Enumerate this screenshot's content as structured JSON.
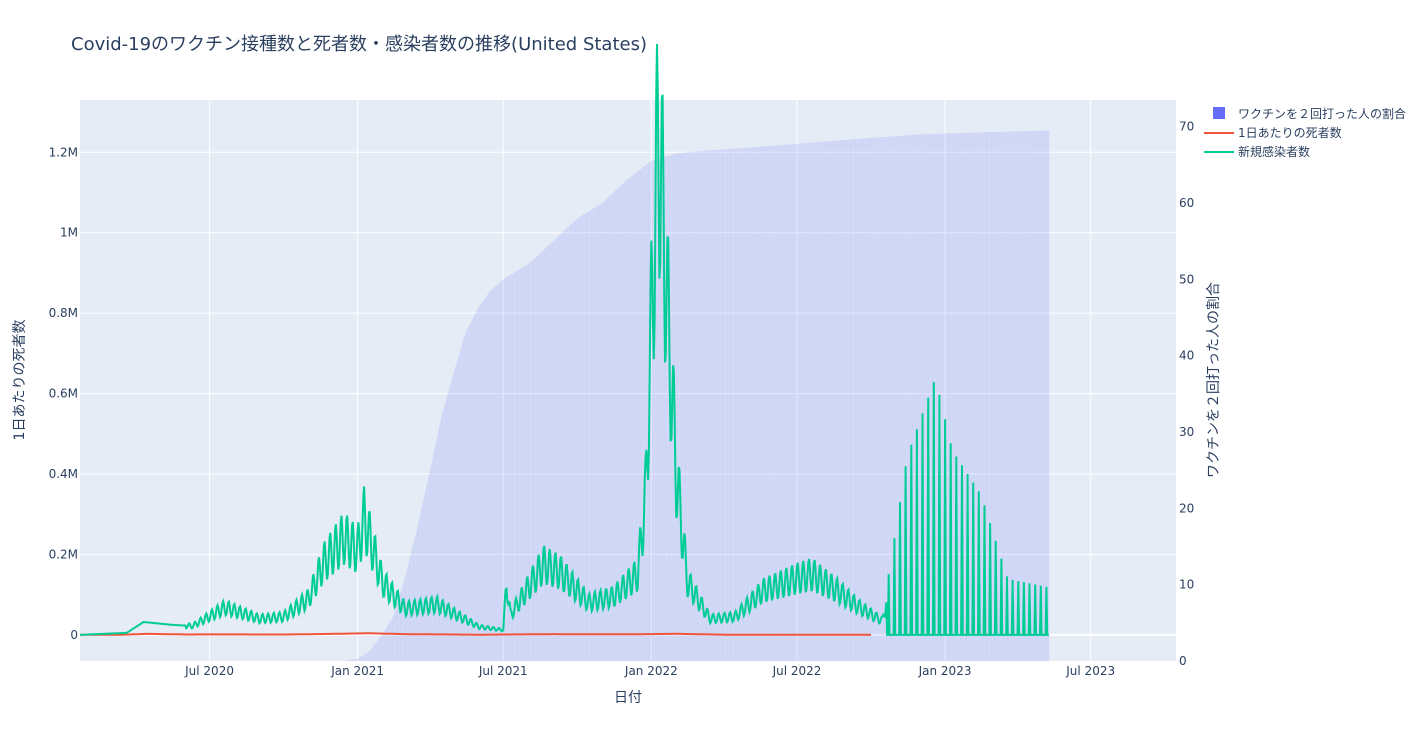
{
  "chart_data": {
    "type": "line",
    "title": "Covid-19のワクチン接種数と死者数・感染者数の推移(United States)",
    "xlabel": "日付",
    "ylabel": "1日あたりの死者数",
    "y2label": "ワクチンを２回打った人の割合",
    "x_range": [
      "2020-01-22",
      "2023-10-15"
    ],
    "x_ticks": [
      {
        "date": "2020-07-01",
        "label": "Jul 2020"
      },
      {
        "date": "2021-01-01",
        "label": "Jan 2021"
      },
      {
        "date": "2021-07-01",
        "label": "Jul 2021"
      },
      {
        "date": "2022-01-01",
        "label": "Jan 2022"
      },
      {
        "date": "2022-07-01",
        "label": "Jul 2022"
      },
      {
        "date": "2023-01-01",
        "label": "Jan 2023"
      },
      {
        "date": "2023-07-01",
        "label": "Jul 2023"
      }
    ],
    "ylim": [
      -65000,
      1330000
    ],
    "y_ticks": [
      {
        "value": 0,
        "label": "0"
      },
      {
        "value": 200000,
        "label": "0.2M"
      },
      {
        "value": 400000,
        "label": "0.4M"
      },
      {
        "value": 600000,
        "label": "0.6M"
      },
      {
        "value": 800000,
        "label": "0.8M"
      },
      {
        "value": 1000000,
        "label": "1M"
      },
      {
        "value": 1200000,
        "label": "1.2M"
      }
    ],
    "y2lim": [
      0,
      73.5
    ],
    "y2_ticks": [
      {
        "value": 0,
        "label": "0"
      },
      {
        "value": 10,
        "label": "10"
      },
      {
        "value": 20,
        "label": "20"
      },
      {
        "value": 30,
        "label": "30"
      },
      {
        "value": 40,
        "label": "40"
      },
      {
        "value": 50,
        "label": "50"
      },
      {
        "value": 60,
        "label": "60"
      },
      {
        "value": 70,
        "label": "70"
      }
    ],
    "legend_position": "top-right",
    "series": [
      {
        "name": "ワクチンを２回打った人の割合",
        "kind": "bar",
        "axis": "y2",
        "color": "#636efa",
        "points": [
          [
            "2020-12-14",
            0.0
          ],
          [
            "2021-01-01",
            0.3
          ],
          [
            "2021-01-15",
            1.2
          ],
          [
            "2021-02-01",
            3.5
          ],
          [
            "2021-02-15",
            6.0
          ],
          [
            "2021-03-01",
            11.0
          ],
          [
            "2021-03-15",
            17.0
          ],
          [
            "2021-04-01",
            25.0
          ],
          [
            "2021-04-15",
            32.0
          ],
          [
            "2021-05-01",
            38.0
          ],
          [
            "2021-05-15",
            43.0
          ],
          [
            "2021-06-01",
            46.5
          ],
          [
            "2021-06-15",
            48.5
          ],
          [
            "2021-07-01",
            50.0
          ],
          [
            "2021-08-01",
            52.0
          ],
          [
            "2021-09-01",
            55.0
          ],
          [
            "2021-10-01",
            58.0
          ],
          [
            "2021-11-01",
            60.0
          ],
          [
            "2021-12-01",
            63.0
          ],
          [
            "2022-01-01",
            65.5
          ],
          [
            "2022-02-01",
            66.5
          ],
          [
            "2022-03-01",
            66.8
          ],
          [
            "2022-06-01",
            67.5
          ],
          [
            "2022-09-01",
            68.3
          ],
          [
            "2022-12-01",
            69.0
          ],
          [
            "2023-03-01",
            69.3
          ],
          [
            "2023-05-10",
            69.5
          ]
        ]
      },
      {
        "name": "1日あたりの死者数",
        "kind": "line",
        "axis": "y",
        "color": "#ef553b",
        "points": [
          [
            "2020-01-22",
            0
          ],
          [
            "2020-03-15",
            500
          ],
          [
            "2020-04-15",
            2500
          ],
          [
            "2020-06-01",
            1000
          ],
          [
            "2020-08-01",
            1100
          ],
          [
            "2020-10-01",
            800
          ],
          [
            "2020-12-01",
            2500
          ],
          [
            "2021-01-15",
            4000
          ],
          [
            "2021-03-01",
            1800
          ],
          [
            "2021-06-01",
            400
          ],
          [
            "2021-09-01",
            1800
          ],
          [
            "2021-12-01",
            1300
          ],
          [
            "2022-02-01",
            2600
          ],
          [
            "2022-04-01",
            500
          ],
          [
            "2022-07-01",
            400
          ],
          [
            "2022-10-01",
            350
          ]
        ]
      },
      {
        "name": "新規感染者数",
        "kind": "line",
        "axis": "y",
        "color": "#00cc96",
        "points": [
          [
            "2020-01-22",
            0
          ],
          [
            "2020-03-20",
            5000
          ],
          [
            "2020-04-10",
            32000
          ],
          [
            "2020-05-15",
            25000
          ],
          [
            "2020-06-10",
            22000
          ],
          [
            "2020-07-20",
            68000
          ],
          [
            "2020-09-01",
            40000
          ],
          [
            "2020-10-01",
            45000
          ],
          [
            "2020-11-01",
            90000
          ],
          [
            "2020-11-20",
            180000
          ],
          [
            "2020-12-15",
            240000
          ],
          [
            "2021-01-01",
            210000
          ],
          [
            "2021-01-09",
            290000
          ],
          [
            "2021-02-01",
            130000
          ],
          [
            "2021-03-01",
            65000
          ],
          [
            "2021-04-10",
            75000
          ],
          [
            "2021-06-01",
            20000
          ],
          [
            "2021-07-01",
            12000
          ],
          [
            "2021-07-05",
            130000
          ],
          [
            "2021-07-10",
            50000
          ],
          [
            "2021-08-20",
            175000
          ],
          [
            "2021-09-10",
            155000
          ],
          [
            "2021-10-15",
            80000
          ],
          [
            "2021-11-15",
            95000
          ],
          [
            "2021-12-15",
            150000
          ],
          [
            "2021-12-25",
            350000
          ],
          [
            "2022-01-03",
            890000
          ],
          [
            "2022-01-10",
            1260000
          ],
          [
            "2022-01-20",
            850000
          ],
          [
            "2022-02-01",
            400000
          ],
          [
            "2022-02-15",
            130000
          ],
          [
            "2022-03-15",
            40000
          ],
          [
            "2022-04-15",
            45000
          ],
          [
            "2022-05-20",
            110000
          ],
          [
            "2022-07-01",
            140000
          ],
          [
            "2022-07-20",
            150000
          ],
          [
            "2022-08-20",
            110000
          ],
          [
            "2022-09-15",
            70000
          ],
          [
            "2022-10-15",
            35000
          ],
          [
            "2022-11-15",
            320000
          ],
          [
            "2022-12-20",
            460000
          ],
          [
            "2023-01-10",
            330000
          ],
          [
            "2023-02-15",
            250000
          ],
          [
            "2023-03-20",
            100000
          ],
          [
            "2023-05-10",
            85000
          ]
        ]
      }
    ]
  }
}
